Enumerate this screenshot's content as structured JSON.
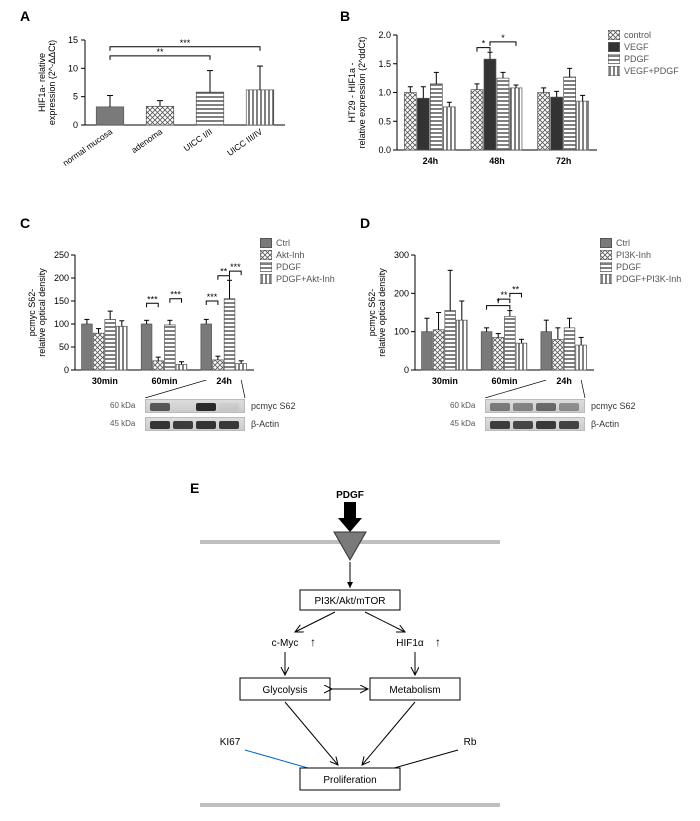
{
  "panelA": {
    "label": "A",
    "ylabel": "HIF1a- relative\nexpression (2^-ΔΔCt)",
    "categories": [
      "normal mucosa",
      "adenoma",
      "UICC I/II",
      "UICC III/IV"
    ],
    "values": [
      3.2,
      3.3,
      5.8,
      6.2
    ],
    "err": [
      2.0,
      1.0,
      3.8,
      4.2
    ],
    "patterns": [
      "solid-gray",
      "crosshatch",
      "hstripe",
      "vstripe"
    ],
    "ylim": [
      0,
      15
    ],
    "ytick": 5,
    "sig": [
      {
        "from": 0,
        "to": 2,
        "label": "**",
        "y": 12.2
      },
      {
        "from": 0,
        "to": 3,
        "label": "***",
        "y": 13.8
      }
    ]
  },
  "panelB": {
    "label": "B",
    "ylabel": "HT29 - HIF1a -\nrelative expression (2^ddCt)",
    "groups": [
      "24h",
      "48h",
      "72h"
    ],
    "series": [
      "control",
      "VEGF",
      "PDGF",
      "VEGF+PDGF"
    ],
    "patterns": [
      "crosshatch",
      "solid-dark",
      "hstripe",
      "vstripe"
    ],
    "values": [
      [
        1.0,
        0.9,
        1.15,
        0.75
      ],
      [
        1.05,
        1.58,
        1.25,
        1.08
      ],
      [
        1.0,
        0.92,
        1.27,
        0.85
      ]
    ],
    "err": [
      [
        0.1,
        0.2,
        0.2,
        0.08
      ],
      [
        0.1,
        0.12,
        0.1,
        0.05
      ],
      [
        0.08,
        0.1,
        0.15,
        0.1
      ]
    ],
    "ylim": [
      0.0,
      2.0
    ],
    "ytick": 0.5,
    "sig": [
      {
        "group": 1,
        "from": 0,
        "to": 1,
        "label": "*",
        "y": 1.78
      },
      {
        "group": 1,
        "from": 1,
        "to": 3,
        "label": "*",
        "y": 1.88
      }
    ]
  },
  "panelC": {
    "label": "C",
    "ylabel": "pcmyc S62-\nrelative optical density",
    "groups": [
      "30min",
      "60min",
      "24h"
    ],
    "series": [
      "Ctrl",
      "Akt-Inh",
      "PDGF",
      "PDGF+Akt-Inh"
    ],
    "patterns": [
      "solid-gray",
      "crosshatch",
      "hstripe",
      "vstripe"
    ],
    "values": [
      [
        100,
        80,
        110,
        95
      ],
      [
        100,
        20,
        98,
        12
      ],
      [
        100,
        22,
        155,
        14
      ]
    ],
    "err": [
      [
        10,
        10,
        18,
        12
      ],
      [
        8,
        8,
        10,
        6
      ],
      [
        10,
        8,
        40,
        6
      ]
    ],
    "ylim": [
      0,
      250
    ],
    "ytick": 50,
    "sig": [
      {
        "group": 1,
        "from": 0,
        "to": 1,
        "label": "***",
        "y": 145
      },
      {
        "group": 1,
        "from": 2,
        "to": 3,
        "label": "***",
        "y": 155
      },
      {
        "group": 2,
        "from": 0,
        "to": 1,
        "label": "***",
        "y": 150
      },
      {
        "group": 2,
        "from": 1,
        "to": 2,
        "label": "**",
        "y": 205
      },
      {
        "group": 2,
        "from": 2,
        "to": 3,
        "label": "***",
        "y": 215
      }
    ],
    "blot_labels": [
      "pcmyc S62",
      "β-Actin"
    ],
    "blot_sizes": [
      "60 kDa",
      "45 kDa"
    ],
    "blot_bands_top": [
      0.7,
      0.0,
      0.95,
      0.05
    ],
    "blot_bands_bot": [
      0.9,
      0.85,
      0.9,
      0.88
    ]
  },
  "panelD": {
    "label": "D",
    "ylabel": "pcmyc S62-\nrelative optical density",
    "groups": [
      "30min",
      "60min",
      "24h"
    ],
    "series": [
      "Ctrl",
      "PI3K-Inh",
      "PDGF",
      "PDGF+PI3K-Inh"
    ],
    "patterns": [
      "solid-gray",
      "crosshatch",
      "hstripe",
      "vstripe"
    ],
    "values": [
      [
        100,
        105,
        155,
        130
      ],
      [
        100,
        85,
        140,
        70
      ],
      [
        100,
        80,
        110,
        65
      ]
    ],
    "err": [
      [
        35,
        45,
        105,
        50
      ],
      [
        10,
        10,
        15,
        10
      ],
      [
        30,
        30,
        25,
        20
      ]
    ],
    "ylim": [
      0,
      300
    ],
    "ytick": 100,
    "sig": [
      {
        "group": 1,
        "from": 0,
        "to": 2,
        "label": "*",
        "y": 168
      },
      {
        "group": 1,
        "from": 1,
        "to": 2,
        "label": "**",
        "y": 185
      },
      {
        "group": 1,
        "from": 2,
        "to": 3,
        "label": "**",
        "y": 200
      }
    ],
    "blot_labels": [
      "pcmyc S62",
      "β-Actin"
    ],
    "blot_sizes": [
      "60 kDa",
      "45 kDa"
    ],
    "blot_bands_top": [
      0.5,
      0.45,
      0.6,
      0.4
    ],
    "blot_bands_bot": [
      0.85,
      0.8,
      0.88,
      0.82
    ]
  },
  "panelE": {
    "label": "E",
    "top": "PDGF",
    "path": "PI3K/Akt/mTOR",
    "left_tf": "c-Myc",
    "right_tf": "HIF1α",
    "glycolysis": "Glycolysis",
    "metabolism": "Metabolism",
    "ki67": "KI67",
    "rb": "Rb",
    "bottom": "Proliferation"
  },
  "colors": {
    "gray": "#7a7a7a",
    "dark": "#333333",
    "line": "#000000",
    "blue": "#0066cc",
    "lightgray": "#bfbfbf"
  }
}
